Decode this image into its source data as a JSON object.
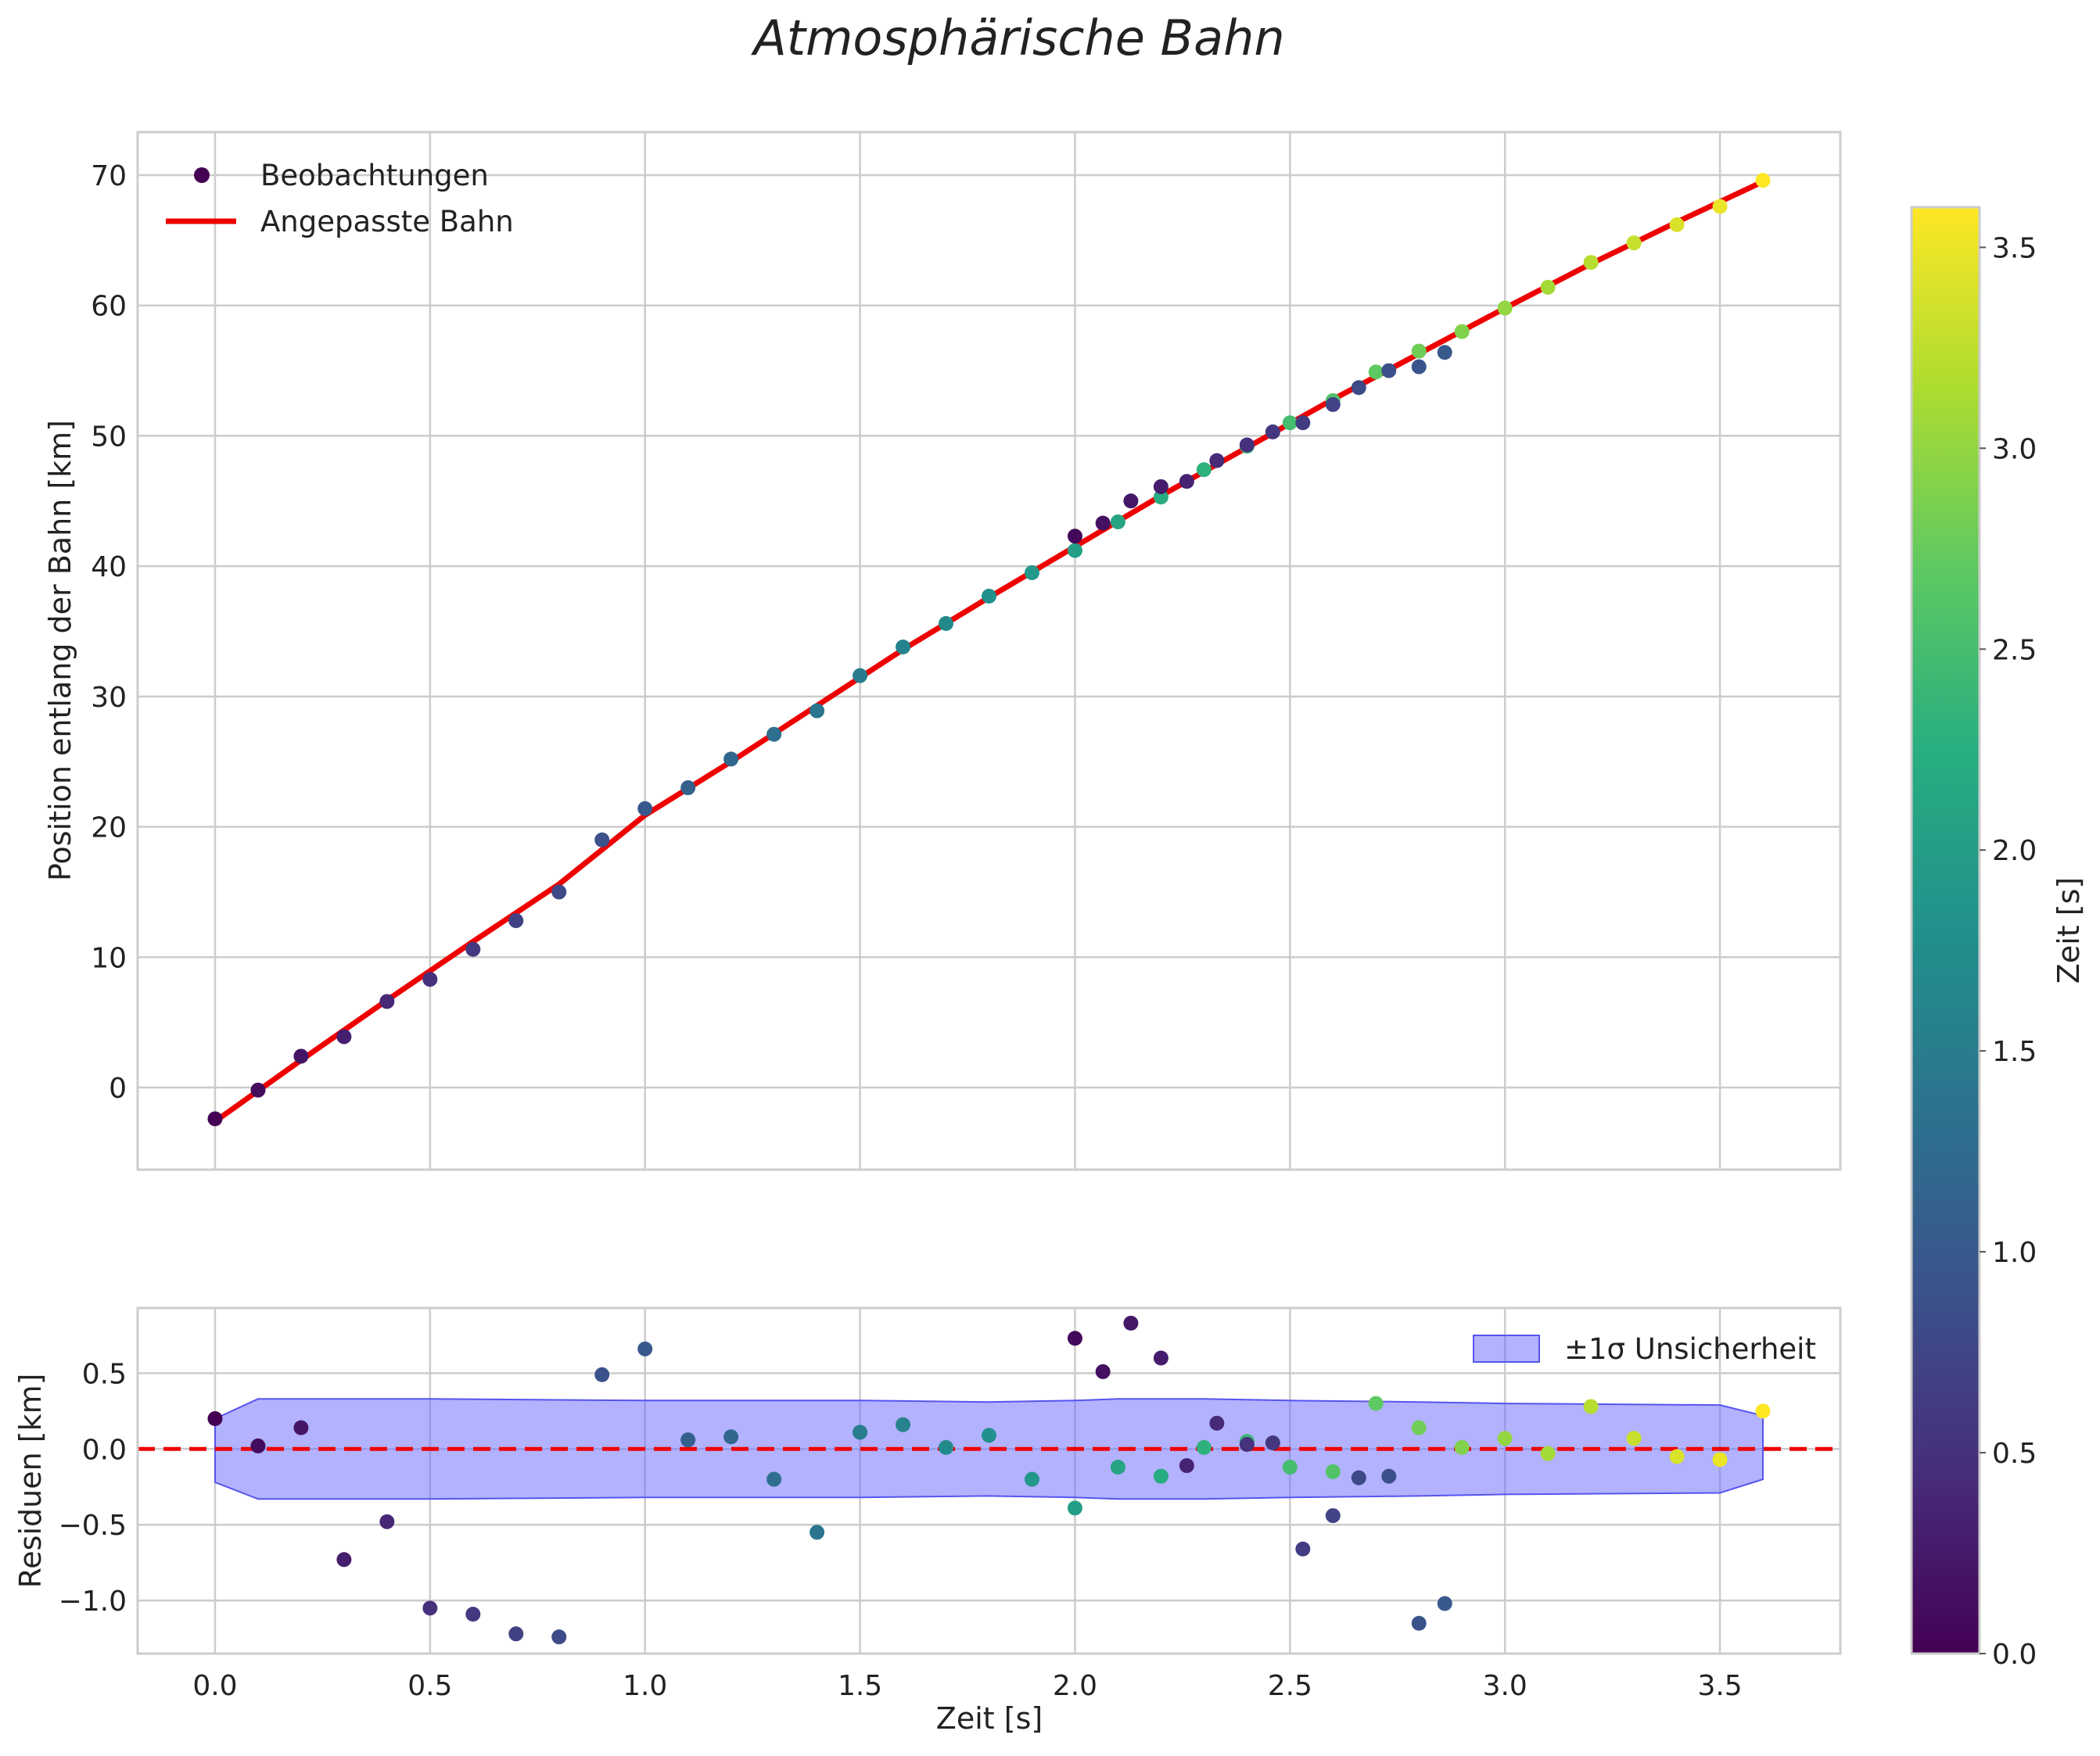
{
  "chart_data": {
    "type": "scatter",
    "title": "Atmosphärische Bahn",
    "colormap": "viridis",
    "colorbar": {
      "label": "Zeit [s]",
      "range": [
        0,
        3.6
      ],
      "ticks": [
        "0.0",
        "0.5",
        "1.0",
        "1.5",
        "2.0",
        "2.5",
        "3.0",
        "3.5"
      ]
    },
    "colors": {
      "fit_line": "#ee0000",
      "uncertainty_band": "#6666ff",
      "zero_line": "#ee0000"
    },
    "observations": [
      {
        "t": 0.0,
        "pos": -2.4,
        "res": 0.2,
        "ct": 0.0
      },
      {
        "t": 0.1,
        "pos": -0.2,
        "res": 0.02,
        "ct": 0.1
      },
      {
        "t": 0.2,
        "pos": 2.4,
        "res": 0.14,
        "ct": 0.2
      },
      {
        "t": 0.3,
        "pos": 3.9,
        "res": -0.73,
        "ct": 0.3
      },
      {
        "t": 0.4,
        "pos": 6.6,
        "res": -0.48,
        "ct": 0.4
      },
      {
        "t": 0.5,
        "pos": 8.3,
        "res": -1.05,
        "ct": 0.5
      },
      {
        "t": 0.6,
        "pos": 10.6,
        "res": -1.09,
        "ct": 0.6
      },
      {
        "t": 0.7,
        "pos": 12.8,
        "res": -1.22,
        "ct": 0.7
      },
      {
        "t": 0.8,
        "pos": 15.0,
        "res": -1.24,
        "ct": 0.8
      },
      {
        "t": 0.9,
        "pos": 19.0,
        "res": 0.49,
        "ct": 0.9
      },
      {
        "t": 1.0,
        "pos": 21.4,
        "res": 0.66,
        "ct": 1.0
      },
      {
        "t": 1.1,
        "pos": 23.0,
        "res": 0.06,
        "ct": 1.1
      },
      {
        "t": 1.2,
        "pos": 25.2,
        "res": 0.08,
        "ct": 1.2
      },
      {
        "t": 1.3,
        "pos": 27.1,
        "res": -0.2,
        "ct": 1.3
      },
      {
        "t": 1.4,
        "pos": 28.9,
        "res": -0.55,
        "ct": 1.4
      },
      {
        "t": 1.5,
        "pos": 31.6,
        "res": 0.11,
        "ct": 1.5
      },
      {
        "t": 1.6,
        "pos": 33.8,
        "res": 0.16,
        "ct": 1.6
      },
      {
        "t": 1.7,
        "pos": 35.6,
        "res": 0.01,
        "ct": 1.7
      },
      {
        "t": 1.8,
        "pos": 37.7,
        "res": 0.09,
        "ct": 1.8
      },
      {
        "t": 1.9,
        "pos": 39.5,
        "res": -0.2,
        "ct": 1.9
      },
      {
        "t": 2.0,
        "pos": 41.2,
        "res": -0.39,
        "ct": 2.0
      },
      {
        "t": 2.1,
        "pos": 43.4,
        "res": -0.12,
        "ct": 2.1
      },
      {
        "t": 2.2,
        "pos": 45.3,
        "res": -0.18,
        "ct": 2.2
      },
      {
        "t": 2.3,
        "pos": 47.4,
        "res": 0.01,
        "ct": 2.3
      },
      {
        "t": 2.4,
        "pos": 49.2,
        "res": 0.05,
        "ct": 2.4
      },
      {
        "t": 2.5,
        "pos": 51.0,
        "res": -0.12,
        "ct": 2.5
      },
      {
        "t": 2.6,
        "pos": 52.7,
        "res": -0.15,
        "ct": 2.6
      },
      {
        "t": 2.7,
        "pos": 54.9,
        "res": 0.3,
        "ct": 2.7
      },
      {
        "t": 2.8,
        "pos": 56.5,
        "res": 0.14,
        "ct": 2.8
      },
      {
        "t": 2.9,
        "pos": 58.0,
        "res": 0.01,
        "ct": 2.9
      },
      {
        "t": 3.0,
        "pos": 59.8,
        "res": 0.07,
        "ct": 3.0
      },
      {
        "t": 3.1,
        "pos": 61.4,
        "res": -0.03,
        "ct": 3.1
      },
      {
        "t": 3.2,
        "pos": 63.3,
        "res": 0.28,
        "ct": 3.2
      },
      {
        "t": 3.3,
        "pos": 64.8,
        "res": 0.07,
        "ct": 3.3
      },
      {
        "t": 3.4,
        "pos": 66.2,
        "res": -0.05,
        "ct": 3.4
      },
      {
        "t": 3.5,
        "pos": 67.6,
        "res": -0.07,
        "ct": 3.5
      },
      {
        "t": 3.6,
        "pos": 69.6,
        "res": 0.25,
        "ct": 3.6
      },
      {
        "t": 2.0,
        "pos": 42.3,
        "res": 0.73,
        "ct": 0.07
      },
      {
        "t": 2.065,
        "pos": 43.3,
        "res": 0.51,
        "ct": 0.15
      },
      {
        "t": 2.13,
        "pos": 45.0,
        "res": 0.83,
        "ct": 0.22
      },
      {
        "t": 2.2,
        "pos": 46.1,
        "res": 0.6,
        "ct": 0.29
      },
      {
        "t": 2.26,
        "pos": 46.5,
        "res": -0.11,
        "ct": 0.36
      },
      {
        "t": 2.33,
        "pos": 48.1,
        "res": 0.17,
        "ct": 0.43
      },
      {
        "t": 2.4,
        "pos": 49.3,
        "res": 0.03,
        "ct": 0.5
      },
      {
        "t": 2.46,
        "pos": 50.3,
        "res": 0.04,
        "ct": 0.57
      },
      {
        "t": 2.53,
        "pos": 51.0,
        "res": -0.66,
        "ct": 0.64
      },
      {
        "t": 2.6,
        "pos": 52.4,
        "res": -0.44,
        "ct": 0.72
      },
      {
        "t": 2.66,
        "pos": 53.7,
        "res": -0.19,
        "ct": 0.79
      },
      {
        "t": 2.73,
        "pos": 55.0,
        "res": -0.18,
        "ct": 0.86
      },
      {
        "t": 2.8,
        "pos": 55.3,
        "res": -1.15,
        "ct": 0.93
      },
      {
        "t": 2.86,
        "pos": 56.4,
        "res": -1.02,
        "ct": 1.0
      }
    ],
    "fit": {
      "name": "Angepasste Bahn",
      "t": [
        0.0,
        0.2,
        0.4,
        0.6,
        0.8,
        1.0,
        1.2,
        1.4,
        1.6,
        1.8,
        2.0,
        2.2,
        2.4,
        2.6,
        2.8,
        3.0,
        3.2,
        3.4,
        3.6
      ],
      "pos": [
        -2.6,
        2.1,
        6.7,
        11.2,
        15.6,
        20.9,
        25.0,
        29.3,
        33.6,
        37.6,
        41.5,
        45.4,
        49.1,
        52.8,
        56.3,
        59.8,
        63.2,
        66.4,
        69.5
      ]
    },
    "uncertainty": {
      "name": "±1σ Unsicherheit",
      "t": [
        0.0,
        0.1,
        0.5,
        1.0,
        1.5,
        1.8,
        2.0,
        2.1,
        2.3,
        2.5,
        2.8,
        3.0,
        3.5,
        3.6
      ],
      "upper": [
        0.2,
        0.33,
        0.33,
        0.32,
        0.32,
        0.31,
        0.32,
        0.33,
        0.33,
        0.32,
        0.31,
        0.3,
        0.29,
        0.22
      ],
      "lower": [
        -0.22,
        -0.33,
        -0.33,
        -0.32,
        -0.32,
        -0.31,
        -0.32,
        -0.33,
        -0.33,
        -0.32,
        -0.31,
        -0.3,
        -0.29,
        -0.2
      ]
    },
    "main_plot": {
      "ylabel": "Position entlang der Bahn [km]",
      "ylim": [
        -6.3,
        73.3
      ],
      "yticks": [
        0,
        10,
        20,
        30,
        40,
        50,
        60,
        70
      ],
      "legend": {
        "placement": "top-left",
        "scatter_label": "Beobachtungen",
        "line_label": "Angepasste Bahn"
      }
    },
    "residual_plot": {
      "ylabel": "Residuen [km]",
      "ylim": [
        -1.35,
        0.93
      ],
      "yticks": [
        -1.0,
        -0.5,
        0.0,
        0.5
      ],
      "yticklabels": [
        "−1.0",
        "−0.5",
        "0.0",
        "0.5"
      ],
      "legend": {
        "placement": "top-right",
        "label": "±1σ Unsicherheit"
      }
    },
    "xlabel": "Zeit [s]",
    "xlim": [
      -0.18,
      3.78
    ],
    "xticks": [
      0.0,
      0.5,
      1.0,
      1.5,
      2.0,
      2.5,
      3.0,
      3.5
    ],
    "xticklabels": [
      "0.0",
      "0.5",
      "1.0",
      "1.5",
      "2.0",
      "2.5",
      "3.0",
      "3.5"
    ]
  }
}
